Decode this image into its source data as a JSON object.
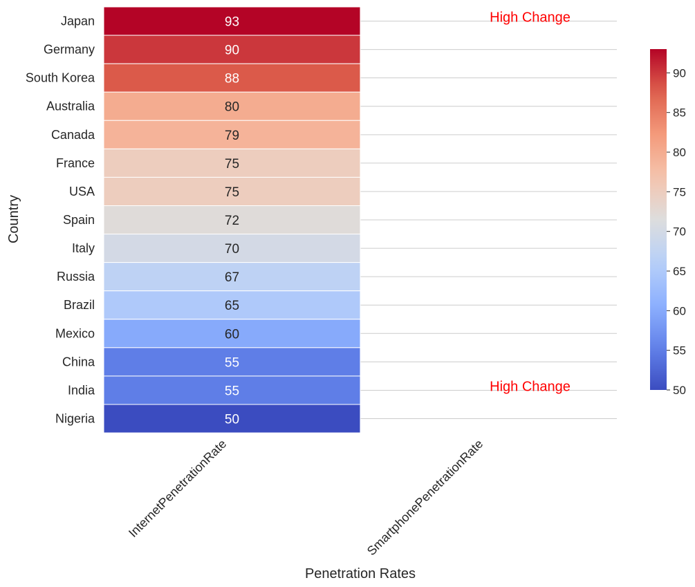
{
  "chart_data": {
    "type": "heatmap",
    "title": "",
    "xlabel": "Penetration Rates",
    "ylabel": "Country",
    "columns": [
      "InternetPenetrationRate",
      "SmartphonePenetrationRate"
    ],
    "rows": [
      "Japan",
      "Germany",
      "South Korea",
      "Australia",
      "Canada",
      "France",
      "USA",
      "Spain",
      "Italy",
      "Russia",
      "Brazil",
      "Mexico",
      "China",
      "India",
      "Nigeria"
    ],
    "values": [
      [
        93,
        null
      ],
      [
        90,
        null
      ],
      [
        88,
        null
      ],
      [
        80,
        null
      ],
      [
        79,
        null
      ],
      [
        75,
        null
      ],
      [
        75,
        null
      ],
      [
        72,
        null
      ],
      [
        70,
        null
      ],
      [
        67,
        null
      ],
      [
        65,
        null
      ],
      [
        60,
        null
      ],
      [
        55,
        null
      ],
      [
        55,
        null
      ],
      [
        50,
        null
      ]
    ],
    "colormap": "coolwarm",
    "vmin": 50,
    "vmax": 93,
    "colorbar_ticks": [
      50,
      55,
      60,
      65,
      70,
      75,
      80,
      85,
      90
    ],
    "annotations": [
      {
        "text": "High Change",
        "row": "Japan"
      },
      {
        "text": "High Change",
        "row": "India"
      }
    ],
    "colors": {
      "annotation": "#ff0000",
      "grid": "#cccccc",
      "text": "#262626"
    }
  }
}
